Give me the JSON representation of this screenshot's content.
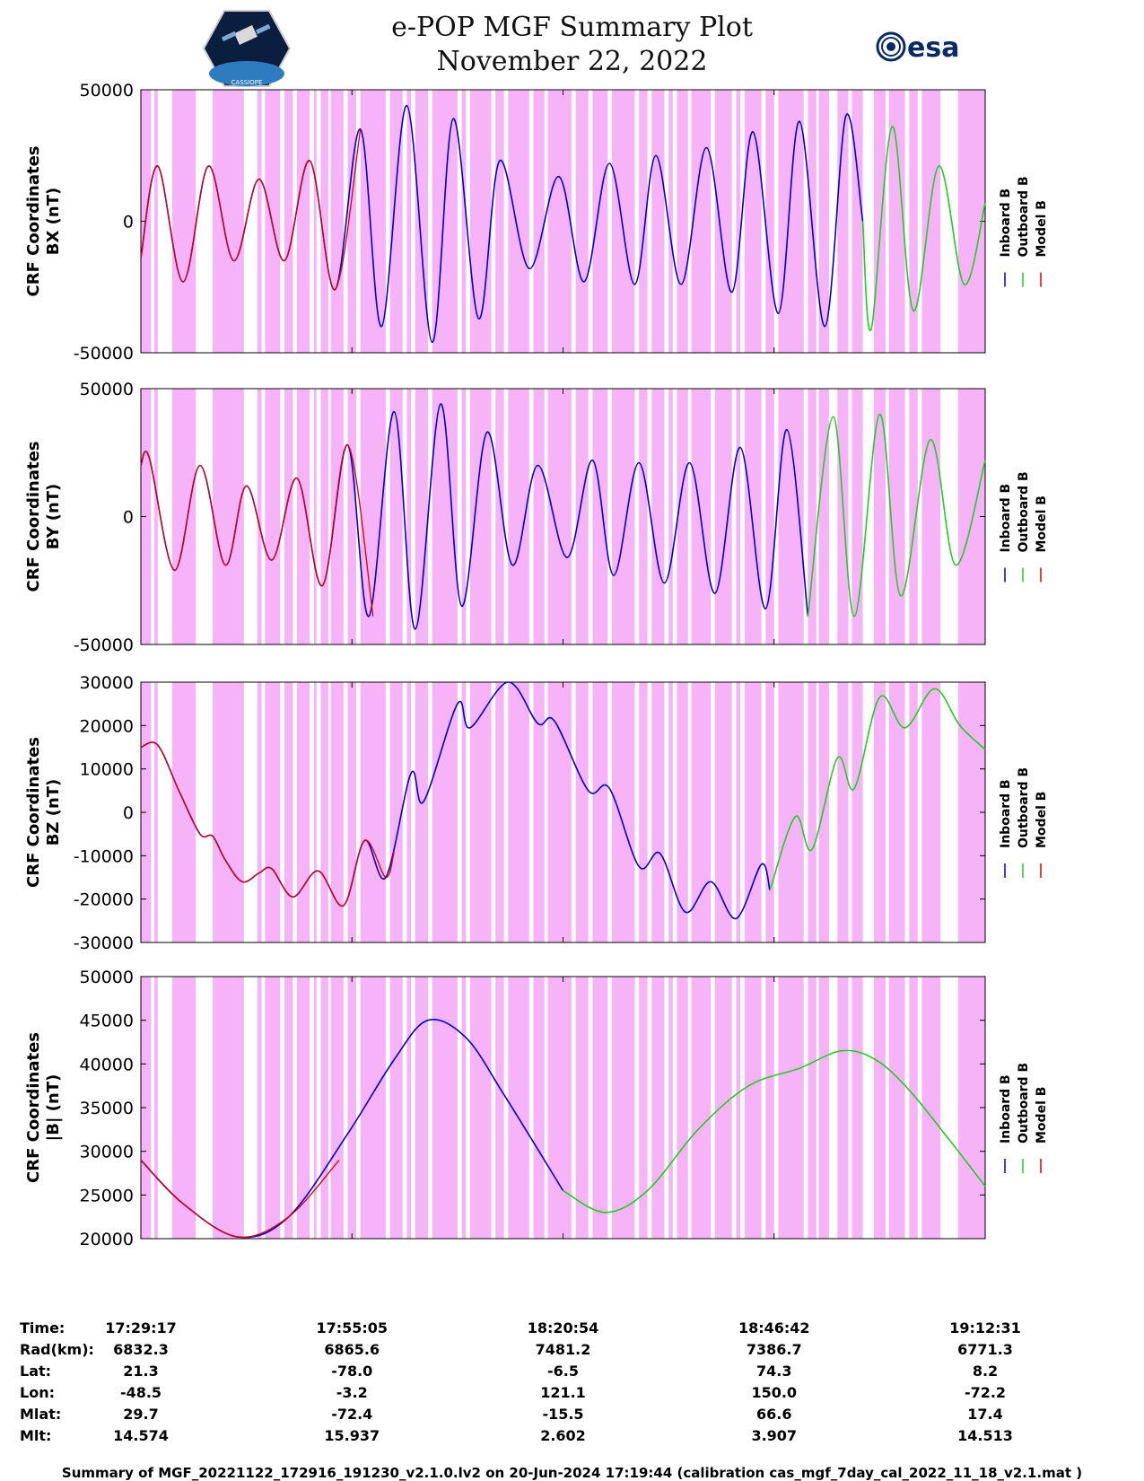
{
  "header": {
    "title": "e-POP MGF Summary Plot",
    "date": "November 22, 2022",
    "left_logo": "cassiope-satellite-emblem",
    "left_logo_text": "CASSIOPE",
    "right_logo": "esa-logo",
    "right_logo_text": "esa"
  },
  "colors": {
    "inboard": "#0000cc",
    "outboard": "#22cc22",
    "model": "#dd0000",
    "shade": "#f7b3f7"
  },
  "legend": [
    "Inboard B",
    "Outboard B",
    "Model B"
  ],
  "chart_data": [
    {
      "type": "line",
      "id": "bx",
      "ylabel": [
        "CRF Coordinates",
        "BX (nT)"
      ],
      "ylim": [
        -50000,
        50000
      ],
      "yticks": [
        -50000,
        0,
        50000
      ],
      "xlim": [
        0,
        1
      ],
      "series": [
        {
          "name": "Inboard B",
          "segment": [
            0.0,
            0.855
          ],
          "points": [
            [
              0.0,
              -14000
            ],
            [
              0.02,
              21000
            ],
            [
              0.05,
              -23000
            ],
            [
              0.08,
              21000
            ],
            [
              0.11,
              -15000
            ],
            [
              0.14,
              16000
            ],
            [
              0.17,
              -15000
            ],
            [
              0.2,
              23000
            ],
            [
              0.23,
              -26000
            ],
            [
              0.26,
              35000
            ],
            [
              0.285,
              -40000
            ],
            [
              0.315,
              44000
            ],
            [
              0.345,
              -46000
            ],
            [
              0.37,
              39000
            ],
            [
              0.4,
              -37000
            ],
            [
              0.425,
              23000
            ],
            [
              0.46,
              -18000
            ],
            [
              0.495,
              17000
            ],
            [
              0.525,
              -23000
            ],
            [
              0.555,
              22000
            ],
            [
              0.585,
              -24000
            ],
            [
              0.61,
              25000
            ],
            [
              0.64,
              -24000
            ],
            [
              0.67,
              28000
            ],
            [
              0.7,
              -27000
            ],
            [
              0.725,
              34000
            ],
            [
              0.755,
              -35000
            ],
            [
              0.78,
              38000
            ],
            [
              0.81,
              -40000
            ],
            [
              0.835,
              40000
            ],
            [
              0.855,
              0
            ]
          ]
        },
        {
          "name": "Outboard B",
          "segment": [
            0.855,
            1.0
          ],
          "points": [
            [
              0.855,
              0
            ],
            [
              0.865,
              -41000
            ],
            [
              0.89,
              36000
            ],
            [
              0.915,
              -34000
            ],
            [
              0.945,
              21000
            ],
            [
              0.975,
              -24000
            ],
            [
              1.0,
              7000
            ]
          ]
        },
        {
          "name": "Model B",
          "segment": [
            0.0,
            0.26
          ],
          "points": [
            [
              0.0,
              -14000
            ],
            [
              0.02,
              21000
            ],
            [
              0.05,
              -23000
            ],
            [
              0.08,
              21000
            ],
            [
              0.11,
              -15000
            ],
            [
              0.14,
              16000
            ],
            [
              0.17,
              -15000
            ],
            [
              0.2,
              23000
            ],
            [
              0.23,
              -26000
            ],
            [
              0.26,
              35000
            ]
          ]
        }
      ]
    },
    {
      "type": "line",
      "id": "by",
      "ylabel": [
        "CRF Coordinates",
        "BY (nT)"
      ],
      "ylim": [
        -50000,
        50000
      ],
      "yticks": [
        -50000,
        0,
        50000
      ],
      "xlim": [
        0,
        1
      ],
      "series": [
        {
          "name": "Inboard B",
          "segment": [
            0.0,
            0.79
          ],
          "points": [
            [
              0.0,
              20000
            ],
            [
              0.01,
              23000
            ],
            [
              0.04,
              -21000
            ],
            [
              0.07,
              20000
            ],
            [
              0.1,
              -19000
            ],
            [
              0.125,
              12000
            ],
            [
              0.155,
              -17000
            ],
            [
              0.185,
              15000
            ],
            [
              0.215,
              -27000
            ],
            [
              0.245,
              28000
            ],
            [
              0.27,
              -39000
            ],
            [
              0.3,
              41000
            ],
            [
              0.325,
              -44000
            ],
            [
              0.355,
              44000
            ],
            [
              0.38,
              -35000
            ],
            [
              0.41,
              33000
            ],
            [
              0.44,
              -19000
            ],
            [
              0.47,
              20000
            ],
            [
              0.505,
              -16000
            ],
            [
              0.535,
              22000
            ],
            [
              0.56,
              -23000
            ],
            [
              0.59,
              21000
            ],
            [
              0.62,
              -26000
            ],
            [
              0.65,
              21000
            ],
            [
              0.68,
              -30000
            ],
            [
              0.71,
              27000
            ],
            [
              0.74,
              -36000
            ],
            [
              0.765,
              34000
            ],
            [
              0.79,
              -39000
            ]
          ]
        },
        {
          "name": "Outboard B",
          "segment": [
            0.79,
            1.0
          ],
          "points": [
            [
              0.79,
              -39000
            ],
            [
              0.82,
              39000
            ],
            [
              0.845,
              -39000
            ],
            [
              0.875,
              40000
            ],
            [
              0.9,
              -31000
            ],
            [
              0.935,
              30000
            ],
            [
              0.965,
              -19000
            ],
            [
              1.0,
              22000
            ]
          ]
        },
        {
          "name": "Model B",
          "segment": [
            0.0,
            0.275
          ],
          "points": [
            [
              0.0,
              20000
            ],
            [
              0.01,
              23000
            ],
            [
              0.04,
              -21000
            ],
            [
              0.07,
              20000
            ],
            [
              0.1,
              -19000
            ],
            [
              0.125,
              12000
            ],
            [
              0.155,
              -17000
            ],
            [
              0.185,
              15000
            ],
            [
              0.215,
              -27000
            ],
            [
              0.245,
              28000
            ],
            [
              0.275,
              -39000
            ]
          ]
        }
      ]
    },
    {
      "type": "line",
      "id": "bz",
      "ylabel": [
        "CRF Coordinates",
        "BZ (nT)"
      ],
      "ylim": [
        -30000,
        30000
      ],
      "yticks": [
        -30000,
        -20000,
        -10000,
        0,
        10000,
        20000,
        30000
      ],
      "xlim": [
        0,
        1
      ],
      "series": [
        {
          "name": "Inboard B",
          "segment": [
            0.0,
            0.745
          ],
          "points": [
            [
              0.0,
              15000
            ],
            [
              0.02,
              15500
            ],
            [
              0.045,
              5000
            ],
            [
              0.07,
              -5000
            ],
            [
              0.085,
              -5500
            ],
            [
              0.1,
              -11000
            ],
            [
              0.12,
              -16000
            ],
            [
              0.14,
              -14000
            ],
            [
              0.155,
              -13000
            ],
            [
              0.18,
              -19500
            ],
            [
              0.21,
              -13500
            ],
            [
              0.24,
              -21500
            ],
            [
              0.265,
              -6500
            ],
            [
              0.29,
              -15000
            ],
            [
              0.32,
              9000
            ],
            [
              0.335,
              2500
            ],
            [
              0.375,
              25000
            ],
            [
              0.39,
              19500
            ],
            [
              0.435,
              30000
            ],
            [
              0.47,
              20500
            ],
            [
              0.49,
              21000
            ],
            [
              0.53,
              5000
            ],
            [
              0.555,
              5500
            ],
            [
              0.59,
              -12500
            ],
            [
              0.615,
              -9500
            ],
            [
              0.645,
              -23000
            ],
            [
              0.675,
              -16000
            ],
            [
              0.705,
              -24500
            ],
            [
              0.735,
              -12000
            ],
            [
              0.745,
              -18000
            ]
          ]
        },
        {
          "name": "Outboard B",
          "segment": [
            0.745,
            1.0
          ],
          "points": [
            [
              0.745,
              -18000
            ],
            [
              0.775,
              -1000
            ],
            [
              0.795,
              -8500
            ],
            [
              0.825,
              12500
            ],
            [
              0.845,
              5500
            ],
            [
              0.875,
              26500
            ],
            [
              0.905,
              19500
            ],
            [
              0.94,
              28500
            ],
            [
              0.97,
              20000
            ],
            [
              1.0,
              14500
            ]
          ]
        },
        {
          "name": "Model B",
          "segment": [
            0.0,
            0.3
          ],
          "points": [
            [
              0.0,
              15000
            ],
            [
              0.02,
              15500
            ],
            [
              0.045,
              5000
            ],
            [
              0.07,
              -5000
            ],
            [
              0.085,
              -5500
            ],
            [
              0.1,
              -11000
            ],
            [
              0.12,
              -16000
            ],
            [
              0.14,
              -14000
            ],
            [
              0.155,
              -13000
            ],
            [
              0.18,
              -19500
            ],
            [
              0.21,
              -13500
            ],
            [
              0.24,
              -21500
            ],
            [
              0.265,
              -6500
            ],
            [
              0.29,
              -15000
            ],
            [
              0.3,
              -9000
            ]
          ]
        }
      ]
    },
    {
      "type": "line",
      "id": "bmag",
      "ylabel": [
        "CRF Coordinates",
        "|B| (nT)"
      ],
      "ylim": [
        20000,
        50000
      ],
      "yticks": [
        20000,
        25000,
        30000,
        35000,
        40000,
        45000,
        50000
      ],
      "xlim": [
        0,
        1
      ],
      "series": [
        {
          "name": "Inboard B",
          "segment": [
            0.0,
            0.5
          ],
          "points": [
            [
              0.0,
              29000
            ],
            [
              0.05,
              24000
            ],
            [
              0.115,
              20200
            ],
            [
              0.175,
              22500
            ],
            [
              0.245,
              32000
            ],
            [
              0.3,
              40500
            ],
            [
              0.34,
              45000
            ],
            [
              0.385,
              43000
            ],
            [
              0.43,
              36500
            ],
            [
              0.5,
              25500
            ]
          ]
        },
        {
          "name": "Outboard B",
          "segment": [
            0.5,
            1.0
          ],
          "points": [
            [
              0.5,
              25500
            ],
            [
              0.55,
              23000
            ],
            [
              0.6,
              25500
            ],
            [
              0.66,
              32500
            ],
            [
              0.72,
              37500
            ],
            [
              0.78,
              39500
            ],
            [
              0.83,
              41500
            ],
            [
              0.87,
              40500
            ],
            [
              0.91,
              37000
            ],
            [
              0.96,
              31000
            ],
            [
              1.0,
              26000
            ]
          ]
        },
        {
          "name": "Model B",
          "segment": [
            0.0,
            0.235
          ],
          "points": [
            [
              0.0,
              29000
            ],
            [
              0.05,
              24000
            ],
            [
              0.115,
              20200
            ],
            [
              0.175,
              22500
            ],
            [
              0.235,
              29000
            ]
          ]
        }
      ]
    }
  ],
  "shading_bands": [
    [
      0.0,
      0.012
    ],
    [
      0.016,
      0.02
    ],
    [
      0.037,
      0.065
    ],
    [
      0.085,
      0.122
    ],
    [
      0.138,
      0.143
    ],
    [
      0.147,
      0.165
    ],
    [
      0.17,
      0.18
    ],
    [
      0.185,
      0.2
    ],
    [
      0.205,
      0.208
    ],
    [
      0.213,
      0.222
    ],
    [
      0.225,
      0.24
    ],
    [
      0.245,
      0.255
    ],
    [
      0.26,
      0.29
    ],
    [
      0.295,
      0.31
    ],
    [
      0.315,
      0.32
    ],
    [
      0.325,
      0.34
    ],
    [
      0.345,
      0.375
    ],
    [
      0.38,
      0.385
    ],
    [
      0.39,
      0.415
    ],
    [
      0.42,
      0.43
    ],
    [
      0.435,
      0.46
    ],
    [
      0.465,
      0.478
    ],
    [
      0.482,
      0.51
    ],
    [
      0.515,
      0.53
    ],
    [
      0.535,
      0.553
    ],
    [
      0.558,
      0.585
    ],
    [
      0.59,
      0.6
    ],
    [
      0.605,
      0.62
    ],
    [
      0.625,
      0.63
    ],
    [
      0.635,
      0.648
    ],
    [
      0.652,
      0.675
    ],
    [
      0.68,
      0.7
    ],
    [
      0.705,
      0.71
    ],
    [
      0.715,
      0.735
    ],
    [
      0.74,
      0.75
    ],
    [
      0.755,
      0.785
    ],
    [
      0.79,
      0.8
    ],
    [
      0.803,
      0.815
    ],
    [
      0.825,
      0.838
    ],
    [
      0.842,
      0.855
    ],
    [
      0.868,
      0.882
    ],
    [
      0.886,
      0.905
    ],
    [
      0.91,
      0.92
    ],
    [
      0.925,
      0.947
    ],
    [
      0.968,
      1.0
    ]
  ],
  "time_axis": {
    "labels": [
      "Time:",
      "Rad(km):",
      "Lat:",
      "Lon:",
      "Mlat:",
      "Mlt:"
    ],
    "columns": [
      {
        "time": "17:29:17",
        "rad": "6832.3",
        "lat": "21.3",
        "lon": "-48.5",
        "mlat": "29.7",
        "mlt": "14.574"
      },
      {
        "time": "17:55:05",
        "rad": "6865.6",
        "lat": "-78.0",
        "lon": "-3.2",
        "mlat": "-72.4",
        "mlt": "15.937"
      },
      {
        "time": "18:20:54",
        "rad": "7481.2",
        "lat": "-6.5",
        "lon": "121.1",
        "mlat": "-15.5",
        "mlt": "2.602"
      },
      {
        "time": "18:46:42",
        "rad": "7386.7",
        "lat": "74.3",
        "lon": "150.0",
        "mlat": "66.6",
        "mlt": "3.907"
      },
      {
        "time": "19:12:31",
        "rad": "6771.3",
        "lat": "8.2",
        "lon": "-72.2",
        "mlat": "17.4",
        "mlt": "14.513"
      }
    ]
  },
  "footer": "Summary of MGF_20221122_172916_191230_v2.1.0.lv2 on 20-Jun-2024 17:19:44 (calibration cas_mgf_7day_cal_2022_11_18_v2.1.mat )"
}
